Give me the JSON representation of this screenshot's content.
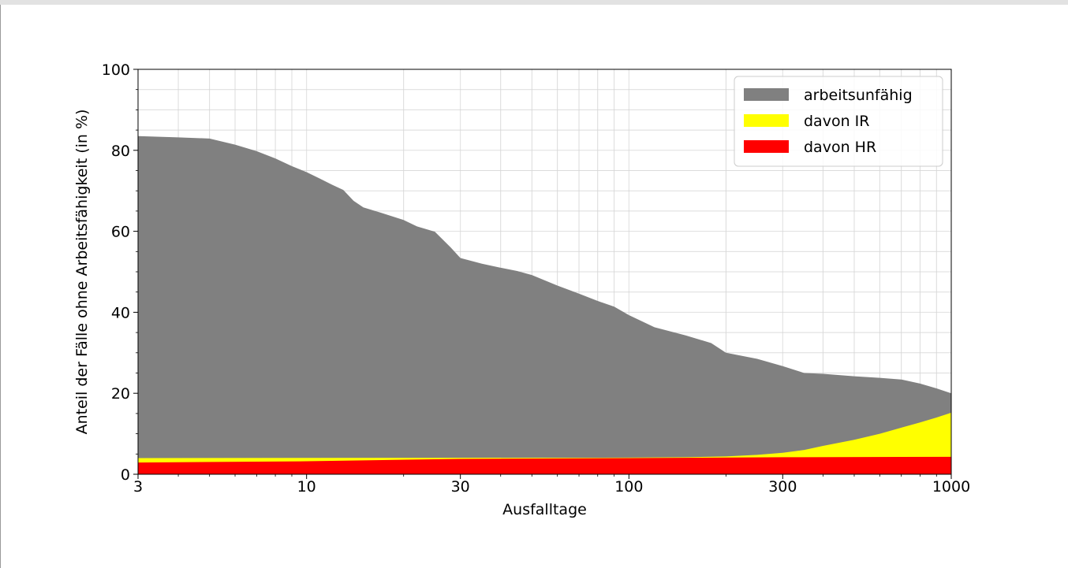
{
  "chart_data": {
    "type": "area",
    "x_scale": "log",
    "xlim": [
      3,
      1000
    ],
    "ylim": [
      0,
      100
    ],
    "xlabel": "Ausfalltage",
    "ylabel": "Anteil der Fälle ohne Arbeitsfähigkeit (in %)",
    "x_ticks": [
      3,
      10,
      30,
      100,
      300,
      1000
    ],
    "x_tick_labels": [
      "3",
      "10",
      "30",
      "100",
      "300",
      "1000"
    ],
    "y_ticks": [
      0,
      20,
      40,
      60,
      80,
      100
    ],
    "y_tick_labels": [
      "0",
      "20",
      "40",
      "60",
      "80",
      "100"
    ],
    "grid": true,
    "legend_position": "top-right",
    "series": [
      {
        "name": "arbeitsunfähig",
        "color": "#808080",
        "x": [
          3,
          4,
          5,
          6,
          7,
          8,
          9,
          10,
          11,
          12,
          13,
          14,
          15,
          17,
          20,
          22,
          25,
          28,
          30,
          35,
          40,
          45,
          50,
          60,
          70,
          80,
          90,
          100,
          120,
          150,
          180,
          200,
          250,
          300,
          350,
          400,
          500,
          600,
          700,
          800,
          900,
          1000
        ],
        "values": [
          83.5,
          83.2,
          82.9,
          81.4,
          79.8,
          78.0,
          76.1,
          74.6,
          73.0,
          71.5,
          70.2,
          67.5,
          65.9,
          64.6,
          62.8,
          61.2,
          59.9,
          56.0,
          53.4,
          52.0,
          51.0,
          50.2,
          49.2,
          46.6,
          44.6,
          42.8,
          41.4,
          39.3,
          36.3,
          34.3,
          32.4,
          30.0,
          28.5,
          26.7,
          25.0,
          24.8,
          24.2,
          23.8,
          23.4,
          22.4,
          21.2,
          20.0
        ]
      },
      {
        "name": "davon IR",
        "color": "#ffff00",
        "x": [
          3,
          100,
          150,
          200,
          250,
          300,
          350,
          400,
          500,
          600,
          700,
          800,
          900,
          1000
        ],
        "values": [
          4.0,
          4.1,
          4.2,
          4.4,
          4.8,
          5.3,
          6.0,
          7.0,
          8.5,
          10.0,
          11.5,
          12.8,
          14.0,
          15.2
        ]
      },
      {
        "name": "davon HR",
        "color": "#ff0000",
        "x": [
          3,
          10,
          30,
          100,
          300,
          1000
        ],
        "values": [
          2.9,
          3.2,
          3.8,
          4.0,
          4.2,
          4.3
        ]
      }
    ]
  }
}
